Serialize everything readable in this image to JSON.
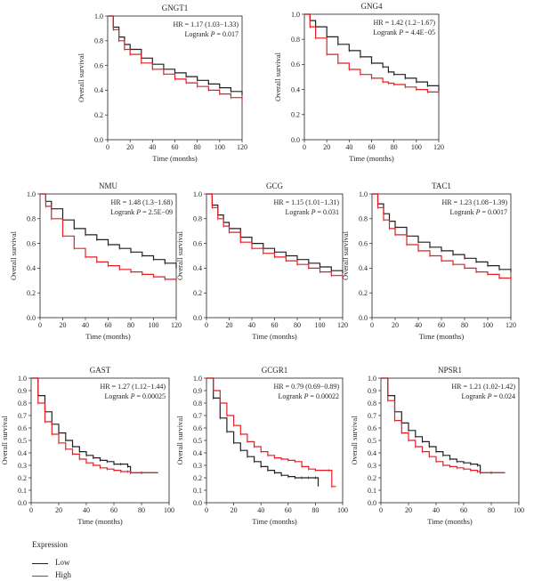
{
  "colors": {
    "low": "#231f20",
    "high": "#e31e24"
  },
  "legend": {
    "title": "Expression",
    "low_label": "Low",
    "high_label": "High"
  },
  "chart_data": [
    {
      "type": "line",
      "title": "GNGT1",
      "xlabel": "Time (months)",
      "ylabel": "Overall survival",
      "xlim": [
        0,
        120
      ],
      "ylim": [
        0,
        1
      ],
      "xticks": [
        0,
        20,
        40,
        60,
        80,
        100,
        120
      ],
      "yticks": [
        0.0,
        0.2,
        0.4,
        0.6,
        0.8,
        1.0
      ],
      "xticklabels": [
        "0",
        "20",
        "40",
        "60",
        "80",
        "100",
        "120"
      ],
      "yticklabels": [
        "0.0",
        "0.2",
        "0.4",
        "0.6",
        "0.8",
        "1.0"
      ],
      "hr_text": "HR = 1.17 (1.03−1.33)",
      "logrank_label": "Logrank ",
      "p_label": "P",
      "p_value_text": " = 0.017",
      "series": [
        {
          "name": "Low",
          "x": [
            0,
            5,
            10,
            15,
            20,
            30,
            40,
            50,
            60,
            70,
            80,
            90,
            100,
            110,
            120
          ],
          "y": [
            1.0,
            0.91,
            0.83,
            0.77,
            0.73,
            0.66,
            0.61,
            0.57,
            0.54,
            0.51,
            0.48,
            0.45,
            0.42,
            0.39,
            0.36
          ]
        },
        {
          "name": "High",
          "x": [
            0,
            5,
            10,
            15,
            20,
            30,
            40,
            50,
            60,
            70,
            80,
            90,
            100,
            110,
            120
          ],
          "y": [
            1.0,
            0.89,
            0.8,
            0.73,
            0.69,
            0.62,
            0.57,
            0.53,
            0.49,
            0.46,
            0.43,
            0.4,
            0.37,
            0.34,
            0.31
          ]
        }
      ]
    },
    {
      "type": "line",
      "title": "GNG4",
      "xlabel": "Time (months)",
      "ylabel": "Overall survival",
      "xlim": [
        0,
        120
      ],
      "ylim": [
        0,
        1
      ],
      "xticks": [
        0,
        20,
        40,
        60,
        80,
        100,
        120
      ],
      "yticks": [
        0.0,
        0.2,
        0.4,
        0.6,
        0.8,
        1.0
      ],
      "xticklabels": [
        "0",
        "20",
        "40",
        "60",
        "80",
        "100",
        "120"
      ],
      "yticklabels": [
        "0.0",
        "0.2",
        "0.4",
        "0.6",
        "0.8",
        "1.0"
      ],
      "hr_text": "HR = 1.42 (1.2−1.67)",
      "logrank_label": "Logrank ",
      "p_label": "P",
      "p_value_text": " = 4.4E−05",
      "series": [
        {
          "name": "Low",
          "x": [
            0,
            5,
            10,
            20,
            30,
            40,
            50,
            60,
            70,
            75,
            80,
            90,
            100,
            110,
            120
          ],
          "y": [
            1.0,
            0.95,
            0.9,
            0.82,
            0.76,
            0.71,
            0.66,
            0.61,
            0.58,
            0.54,
            0.52,
            0.49,
            0.46,
            0.43,
            0.39
          ]
        },
        {
          "name": "High",
          "x": [
            0,
            5,
            10,
            20,
            30,
            40,
            50,
            60,
            70,
            75,
            80,
            90,
            100,
            110,
            120
          ],
          "y": [
            1.0,
            0.9,
            0.81,
            0.68,
            0.61,
            0.56,
            0.52,
            0.49,
            0.46,
            0.45,
            0.44,
            0.42,
            0.4,
            0.38,
            0.36
          ]
        }
      ]
    },
    {
      "type": "line",
      "title": "NMU",
      "xlabel": "Time (months)",
      "ylabel": "Overall survival",
      "xlim": [
        0,
        120
      ],
      "ylim": [
        0,
        1
      ],
      "xticks": [
        0,
        20,
        40,
        60,
        80,
        100,
        120
      ],
      "yticks": [
        0.0,
        0.2,
        0.4,
        0.6,
        0.8,
        1.0
      ],
      "xticklabels": [
        "0",
        "20",
        "40",
        "60",
        "80",
        "100",
        "120"
      ],
      "yticklabels": [
        "0.0",
        "0.2",
        "0.4",
        "0.6",
        "0.8",
        "1.0"
      ],
      "hr_text": "HR = 1.48 (1.3−1.68)",
      "logrank_label": "Logrank ",
      "p_label": "P",
      "p_value_text": " = 2.5E−09",
      "series": [
        {
          "name": "Low",
          "x": [
            0,
            5,
            10,
            20,
            30,
            40,
            50,
            60,
            70,
            80,
            90,
            100,
            110,
            120
          ],
          "y": [
            1.0,
            0.94,
            0.88,
            0.79,
            0.72,
            0.67,
            0.63,
            0.59,
            0.56,
            0.53,
            0.5,
            0.47,
            0.44,
            0.4
          ]
        },
        {
          "name": "High",
          "x": [
            0,
            5,
            10,
            20,
            30,
            40,
            50,
            60,
            70,
            80,
            90,
            100,
            110,
            120
          ],
          "y": [
            1.0,
            0.9,
            0.8,
            0.66,
            0.56,
            0.49,
            0.45,
            0.42,
            0.39,
            0.37,
            0.35,
            0.33,
            0.31,
            0.29
          ]
        }
      ]
    },
    {
      "type": "line",
      "title": "GCG",
      "xlabel": "Time (months)",
      "ylabel": "Overall survival",
      "xlim": [
        0,
        120
      ],
      "ylim": [
        0,
        1
      ],
      "xticks": [
        0,
        20,
        40,
        60,
        80,
        100,
        120
      ],
      "yticks": [
        0.0,
        0.2,
        0.4,
        0.6,
        0.8,
        1.0
      ],
      "xticklabels": [
        "0",
        "20",
        "40",
        "60",
        "80",
        "100",
        "120"
      ],
      "yticklabels": [
        "0.0",
        "0.2",
        "0.4",
        "0.6",
        "0.8",
        "1.0"
      ],
      "hr_text": "HR = 1.15 (1.01−1.31)",
      "logrank_label": "Logrank ",
      "p_label": "P",
      "p_value_text": " = 0.031",
      "series": [
        {
          "name": "Low",
          "x": [
            0,
            5,
            10,
            15,
            20,
            30,
            40,
            50,
            60,
            70,
            80,
            90,
            100,
            110,
            120
          ],
          "y": [
            1.0,
            0.91,
            0.83,
            0.77,
            0.72,
            0.65,
            0.6,
            0.56,
            0.53,
            0.5,
            0.47,
            0.44,
            0.41,
            0.38,
            0.36
          ]
        },
        {
          "name": "High",
          "x": [
            0,
            5,
            10,
            15,
            20,
            30,
            40,
            50,
            60,
            70,
            80,
            90,
            100,
            110,
            120
          ],
          "y": [
            1.0,
            0.89,
            0.8,
            0.74,
            0.69,
            0.61,
            0.56,
            0.52,
            0.49,
            0.46,
            0.43,
            0.4,
            0.37,
            0.34,
            0.31
          ]
        }
      ]
    },
    {
      "type": "line",
      "title": "TAC1",
      "xlabel": "Time (months)",
      "ylabel": "Overall survival",
      "xlim": [
        0,
        120
      ],
      "ylim": [
        0,
        1
      ],
      "xticks": [
        0,
        20,
        40,
        60,
        80,
        100,
        120
      ],
      "yticks": [
        0.0,
        0.2,
        0.4,
        0.6,
        0.8,
        1.0
      ],
      "xticklabels": [
        "0",
        "20",
        "40",
        "60",
        "80",
        "100",
        "120"
      ],
      "yticklabels": [
        "0.0",
        "0.2",
        "0.4",
        "0.6",
        "0.8",
        "1.0"
      ],
      "hr_text": "HR = 1.23 (1.08−1.39)",
      "logrank_label": "Logrank ",
      "p_label": "P",
      "p_value_text": " = 0.0017",
      "series": [
        {
          "name": "Low",
          "x": [
            0,
            5,
            10,
            15,
            20,
            30,
            40,
            50,
            60,
            70,
            80,
            90,
            100,
            110,
            120
          ],
          "y": [
            1.0,
            0.92,
            0.84,
            0.78,
            0.73,
            0.66,
            0.61,
            0.57,
            0.54,
            0.51,
            0.48,
            0.45,
            0.42,
            0.39,
            0.37
          ]
        },
        {
          "name": "High",
          "x": [
            0,
            5,
            10,
            15,
            20,
            30,
            40,
            50,
            60,
            70,
            80,
            90,
            100,
            110,
            120
          ],
          "y": [
            1.0,
            0.89,
            0.79,
            0.72,
            0.67,
            0.59,
            0.54,
            0.5,
            0.46,
            0.43,
            0.4,
            0.37,
            0.35,
            0.32,
            0.3
          ]
        }
      ]
    },
    {
      "type": "line",
      "title": "GAST",
      "xlabel": "Time (months)",
      "ylabel": "Overall survival",
      "xlim": [
        0,
        100
      ],
      "ylim": [
        0,
        1
      ],
      "xticks": [
        0,
        20,
        40,
        60,
        80,
        100
      ],
      "yticks": [
        0.0,
        0.1,
        0.2,
        0.3,
        0.4,
        0.5,
        0.6,
        0.7,
        0.8,
        0.9,
        1.0
      ],
      "xticklabels": [
        "0",
        "20",
        "40",
        "60",
        "80",
        "100"
      ],
      "yticklabels": [
        "0.0",
        "0.1",
        "0.2",
        "0.3",
        "0.4",
        "0.5",
        "0.6",
        "0.7",
        "0.8",
        "0.9",
        "1.0"
      ],
      "hr_text": "HR = 1.27 (1.12−1.44)",
      "logrank_label": "Logrank ",
      "p_label": "P",
      "p_value_text": " = 0.00025",
      "series": [
        {
          "name": "Low",
          "x": [
            0,
            5,
            10,
            15,
            20,
            25,
            30,
            35,
            40,
            45,
            50,
            55,
            60,
            65,
            70,
            72,
            80,
            92
          ],
          "y": [
            1.0,
            0.86,
            0.73,
            0.63,
            0.56,
            0.5,
            0.45,
            0.41,
            0.38,
            0.36,
            0.34,
            0.33,
            0.31,
            0.31,
            0.29,
            0.24,
            0.24,
            0.24
          ]
        },
        {
          "name": "High",
          "x": [
            0,
            5,
            10,
            15,
            20,
            25,
            30,
            35,
            40,
            45,
            50,
            55,
            60,
            65,
            70,
            72,
            80,
            92
          ],
          "y": [
            1.0,
            0.8,
            0.65,
            0.55,
            0.48,
            0.43,
            0.39,
            0.35,
            0.32,
            0.3,
            0.28,
            0.27,
            0.26,
            0.25,
            0.25,
            0.24,
            0.24,
            0.24
          ]
        }
      ]
    },
    {
      "type": "line",
      "title": "GCGR1",
      "xlabel": "Time (months)",
      "ylabel": "Overall survival",
      "xlim": [
        0,
        100
      ],
      "ylim": [
        0,
        1
      ],
      "xticks": [
        0,
        20,
        40,
        60,
        80,
        100
      ],
      "yticks": [
        0.0,
        0.1,
        0.2,
        0.3,
        0.4,
        0.5,
        0.6,
        0.7,
        0.8,
        0.9,
        1.0
      ],
      "xticklabels": [
        "0",
        "20",
        "40",
        "60",
        "80",
        "100"
      ],
      "yticklabels": [
        "0.0",
        "0.1",
        "0.2",
        "0.3",
        "0.4",
        "0.5",
        "0.6",
        "0.7",
        "0.8",
        "0.9",
        "1.0"
      ],
      "hr_text": "HR = 0.79 (0.69−0.89)",
      "logrank_label": "Logrank ",
      "p_label": "P",
      "p_value_text": " = 0.00022",
      "series": [
        {
          "name": "Low",
          "x": [
            0,
            5,
            10,
            15,
            20,
            25,
            30,
            35,
            40,
            45,
            50,
            55,
            60,
            65,
            70,
            75,
            80,
            82
          ],
          "y": [
            1.0,
            0.84,
            0.68,
            0.57,
            0.48,
            0.42,
            0.37,
            0.33,
            0.29,
            0.26,
            0.24,
            0.22,
            0.21,
            0.2,
            0.2,
            0.2,
            0.2,
            0.13
          ]
        },
        {
          "name": "High",
          "x": [
            0,
            5,
            10,
            15,
            20,
            25,
            30,
            35,
            40,
            45,
            50,
            55,
            60,
            65,
            70,
            75,
            80,
            90,
            92,
            95
          ],
          "y": [
            1.0,
            0.9,
            0.8,
            0.7,
            0.62,
            0.55,
            0.49,
            0.45,
            0.41,
            0.38,
            0.36,
            0.35,
            0.34,
            0.33,
            0.29,
            0.27,
            0.26,
            0.26,
            0.13,
            0.13
          ]
        }
      ]
    },
    {
      "type": "line",
      "title": "NPSR1",
      "xlabel": "Time (months)",
      "ylabel": "Overall survival",
      "xlim": [
        0,
        100
      ],
      "ylim": [
        0,
        1
      ],
      "xticks": [
        0,
        20,
        40,
        60,
        80,
        100
      ],
      "yticks": [
        0.0,
        0.1,
        0.2,
        0.3,
        0.4,
        0.5,
        0.6,
        0.7,
        0.8,
        0.9,
        1.0
      ],
      "xticklabels": [
        "0",
        "20",
        "40",
        "60",
        "80",
        "100"
      ],
      "yticklabels": [
        "0.0",
        "0.1",
        "0.2",
        "0.3",
        "0.4",
        "0.5",
        "0.6",
        "0.7",
        "0.8",
        "0.9",
        "1.0"
      ],
      "hr_text": "HR = 1.21 (1.02-1.42)",
      "logrank_label": "Logrank ",
      "p_label": "P",
      "p_value_text": " = 0.024",
      "series": [
        {
          "name": "Low",
          "x": [
            0,
            5,
            10,
            15,
            20,
            25,
            30,
            35,
            40,
            45,
            50,
            55,
            60,
            65,
            70,
            72,
            80,
            90
          ],
          "y": [
            1.0,
            0.86,
            0.73,
            0.64,
            0.58,
            0.53,
            0.49,
            0.45,
            0.41,
            0.38,
            0.35,
            0.33,
            0.32,
            0.31,
            0.3,
            0.24,
            0.24,
            0.24
          ]
        },
        {
          "name": "High",
          "x": [
            0,
            5,
            10,
            15,
            20,
            25,
            30,
            35,
            40,
            45,
            50,
            55,
            60,
            65,
            70,
            72,
            80,
            90
          ],
          "y": [
            1.0,
            0.82,
            0.66,
            0.56,
            0.5,
            0.45,
            0.41,
            0.37,
            0.33,
            0.3,
            0.29,
            0.28,
            0.27,
            0.26,
            0.25,
            0.24,
            0.24,
            0.24
          ]
        }
      ]
    }
  ]
}
